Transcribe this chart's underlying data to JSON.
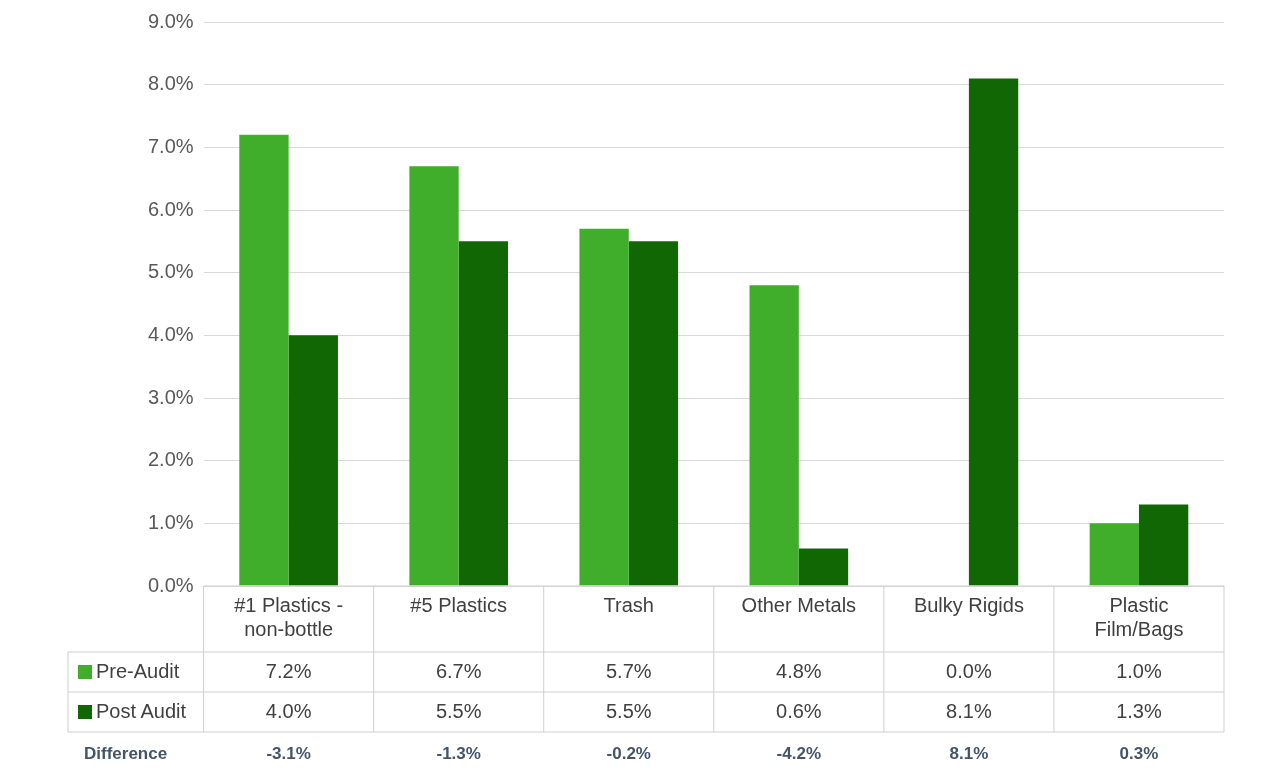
{
  "chart_data": {
    "type": "bar",
    "categories": [
      "#1 Plastics - non-bottle",
      "#5 Plastics",
      "Trash",
      "Other Metals",
      "Bulky Rigids",
      "Plastic Film/Bags"
    ],
    "series": [
      {
        "name": "Pre-Audit",
        "color": "#41ae2b",
        "values": [
          7.2,
          6.7,
          5.7,
          4.8,
          0.0,
          1.0
        ],
        "value_labels": [
          "7.2%",
          "6.7%",
          "5.7%",
          "4.8%",
          "0.0%",
          "1.0%"
        ]
      },
      {
        "name": "Post Audit",
        "color": "#126705",
        "values": [
          4.0,
          5.5,
          5.5,
          0.6,
          8.1,
          1.3
        ],
        "value_labels": [
          "4.0%",
          "5.5%",
          "5.5%",
          "0.6%",
          "8.1%",
          "1.3%"
        ]
      }
    ],
    "ylim": [
      0,
      9
    ],
    "yticks": [
      {
        "value": 0,
        "label": "0.0%"
      },
      {
        "value": 1,
        "label": "1.0%"
      },
      {
        "value": 2,
        "label": "2.0%"
      },
      {
        "value": 3,
        "label": "3.0%"
      },
      {
        "value": 4,
        "label": "4.0%"
      },
      {
        "value": 5,
        "label": "5.0%"
      },
      {
        "value": 6,
        "label": "6.0%"
      },
      {
        "value": 7,
        "label": "7.0%"
      },
      {
        "value": 8,
        "label": "8.0%"
      },
      {
        "value": 9,
        "label": "9.0%"
      }
    ],
    "grid": "y",
    "legend": "bottom",
    "annotations": [
      "Difference",
      "-3.1%",
      "-1.3%",
      "-0.2%",
      "-4.2%",
      "8.1%",
      "0.3%"
    ]
  }
}
